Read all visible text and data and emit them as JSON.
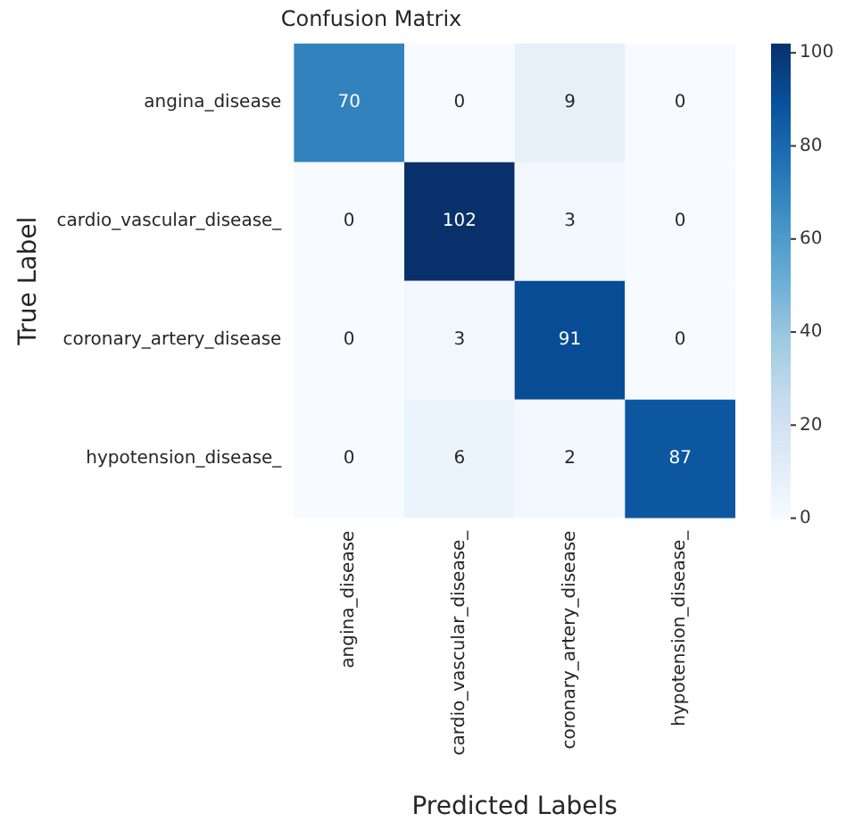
{
  "chart_data": {
    "type": "heatmap",
    "title": "Confusion Matrix",
    "xlabel": "Predicted Labels",
    "ylabel": "True Label",
    "categories": [
      "angina_disease",
      "cardio_vascular_disease_",
      "coronary_artery_disease",
      "hypotension_disease_"
    ],
    "y_categories": [
      "angina_disease",
      "cardio_vascular_disease_",
      "coronary_artery_disease",
      "hypotension_disease_"
    ],
    "cells": [
      [
        70,
        0,
        9,
        0
      ],
      [
        0,
        102,
        3,
        0
      ],
      [
        0,
        3,
        91,
        0
      ],
      [
        0,
        6,
        2,
        87
      ]
    ],
    "clim": [
      0,
      102
    ],
    "cticks": [
      0,
      20,
      40,
      60,
      80,
      100
    ],
    "data_labels": true
  }
}
